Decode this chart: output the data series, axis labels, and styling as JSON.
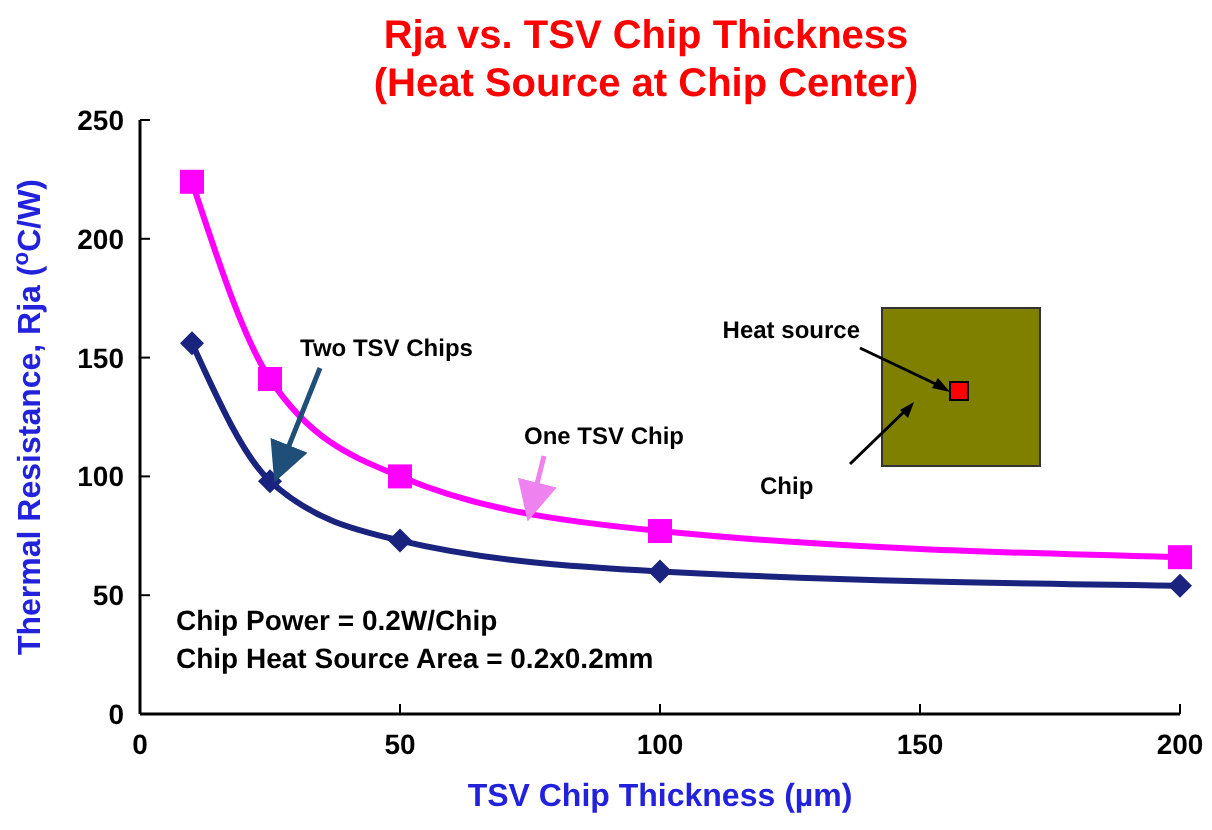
{
  "chart_data": {
    "type": "line",
    "title": "Rja vs. TSV Chip Thickness",
    "subtitle": "(Heat Source at Chip Center)",
    "xlabel": "TSV Chip Thickness (µm)",
    "ylabel": "Thermal Resistance, Rja  ($^{o}$C/W)",
    "x": [
      10,
      25,
      50,
      100,
      200
    ],
    "series": [
      {
        "name": "One TSV Chip",
        "color": "#ff00ff",
        "marker": "square",
        "values": [
          224,
          141,
          100,
          77,
          66
        ]
      },
      {
        "name": "Two TSV Chips",
        "color": "#1a237e",
        "marker": "diamond",
        "values": [
          156,
          98,
          73,
          60,
          54
        ]
      }
    ],
    "xlim": [
      0,
      200
    ],
    "xticks": [
      0,
      50,
      100,
      150,
      200
    ],
    "ylim": [
      0,
      250
    ],
    "yticks": [
      0,
      50,
      100,
      150,
      200,
      250
    ],
    "grid": false,
    "legend": false,
    "annotations": [
      "Chip Power = 0.2W/Chip",
      "Chip Heat Source Area = 0.2x0.2mm",
      "Heat source",
      "Chip"
    ]
  }
}
